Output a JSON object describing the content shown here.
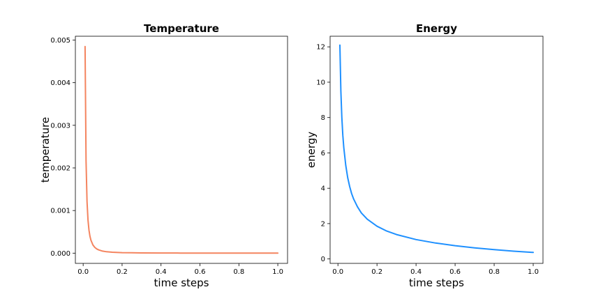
{
  "chart_data": [
    {
      "type": "line",
      "title": "Temperature",
      "xlabel": "time steps",
      "ylabel": "temperature",
      "xlim": [
        -0.04,
        1.05
      ],
      "ylim": [
        -0.00024,
        0.00509
      ],
      "xticks": [
        0.0,
        0.2,
        0.4,
        0.6,
        0.8,
        1.0
      ],
      "xtick_labels": [
        "0.0",
        "0.2",
        "0.4",
        "0.6",
        "0.8",
        "1.0"
      ],
      "yticks": [
        0.0,
        0.001,
        0.002,
        0.003,
        0.004,
        0.005
      ],
      "ytick_labels": [
        "0.000",
        "0.001",
        "0.002",
        "0.003",
        "0.004",
        "0.005"
      ],
      "grid": false,
      "color": "#f4845f",
      "series": [
        {
          "x": [
            0.01,
            0.015,
            0.02,
            0.025,
            0.03,
            0.035,
            0.04,
            0.05,
            0.06,
            0.07,
            0.08,
            0.1,
            0.12,
            0.15,
            0.2,
            0.25,
            0.3,
            0.4,
            0.5,
            0.6,
            0.7,
            0.8,
            0.9,
            1.0
          ],
          "y": [
            0.00485,
            0.00216,
            0.00121,
            0.000776,
            0.000539,
            0.000396,
            0.000303,
            0.000194,
            0.000135,
            9.9e-05,
            7.58e-05,
            4.85e-05,
            3.37e-05,
            2.16e-05,
            1.21e-05,
            7.8e-06,
            5.4e-06,
            3e-06,
            1.9e-06,
            1.3e-06,
            1e-06,
            8e-07,
            6e-07,
            5e-07
          ]
        }
      ]
    },
    {
      "type": "line",
      "title": "Energy",
      "xlabel": "time steps",
      "ylabel": "energy",
      "xlim": [
        -0.04,
        1.05
      ],
      "ylim": [
        -0.25,
        12.6
      ],
      "xticks": [
        0.0,
        0.2,
        0.4,
        0.6,
        0.8,
        1.0
      ],
      "xtick_labels": [
        "0.0",
        "0.2",
        "0.4",
        "0.6",
        "0.8",
        "1.0"
      ],
      "yticks": [
        0,
        2,
        4,
        6,
        8,
        10,
        12
      ],
      "ytick_labels": [
        "0",
        "2",
        "4",
        "6",
        "8",
        "10",
        "12"
      ],
      "grid": false,
      "color": "#1e90ff",
      "series": [
        {
          "x": [
            0.01,
            0.015,
            0.02,
            0.025,
            0.03,
            0.04,
            0.05,
            0.06,
            0.07,
            0.08,
            0.1,
            0.12,
            0.15,
            0.2,
            0.25,
            0.3,
            0.4,
            0.5,
            0.6,
            0.7,
            0.8,
            0.9,
            1.0
          ],
          "y": [
            12.1,
            9.5,
            8.0,
            7.0,
            6.3,
            5.3,
            4.6,
            4.1,
            3.7,
            3.4,
            2.95,
            2.6,
            2.25,
            1.85,
            1.58,
            1.38,
            1.1,
            0.9,
            0.75,
            0.63,
            0.53,
            0.44,
            0.37
          ]
        }
      ]
    }
  ]
}
